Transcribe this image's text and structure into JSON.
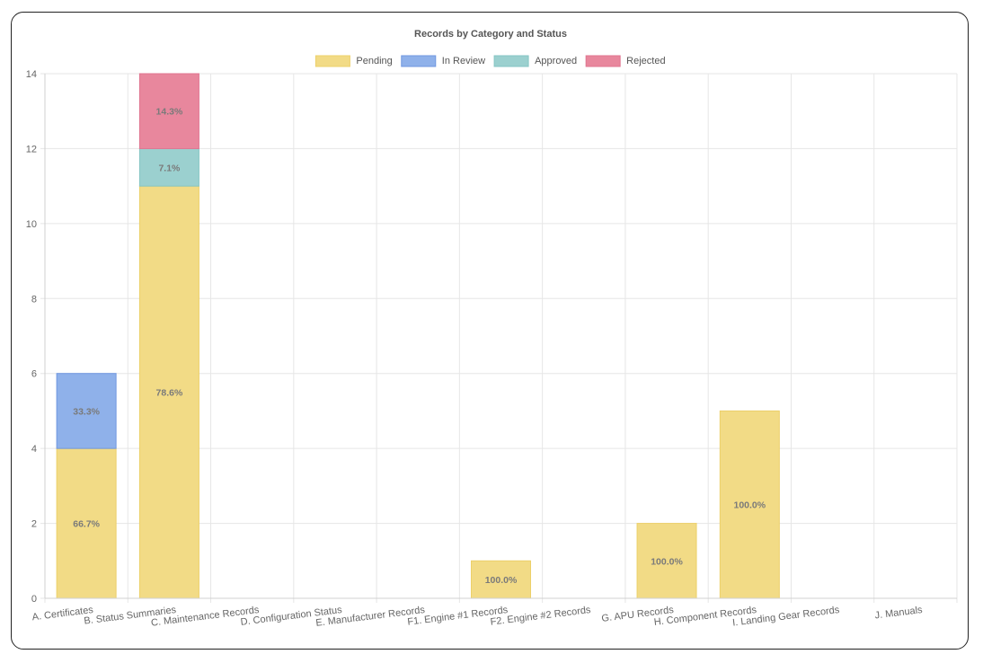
{
  "chart_data": {
    "type": "bar",
    "stacked": true,
    "title": "Records by Category and Status",
    "categories": [
      "A. Certificates",
      "B. Status Summaries",
      "C. Maintenance Records",
      "D. Configuration Status",
      "E. Manufacturer Records",
      "F1. Engine #1 Records",
      "F2. Engine #2 Records",
      "G. APU Records",
      "H. Component Records",
      "I. Landing Gear Records",
      "J. Manuals"
    ],
    "series": [
      {
        "name": "Pending",
        "color": "#f2db86",
        "border": "#ecd06a",
        "values": [
          4,
          11,
          0,
          0,
          0,
          1,
          0,
          2,
          5,
          0,
          0
        ]
      },
      {
        "name": "In Review",
        "color": "#8fb1ea",
        "border": "#6f97e0",
        "values": [
          2,
          0,
          0,
          0,
          0,
          0,
          0,
          0,
          0,
          0,
          0
        ]
      },
      {
        "name": "Approved",
        "color": "#9bd0cf",
        "border": "#86c5c4",
        "values": [
          0,
          1,
          0,
          0,
          0,
          0,
          0,
          0,
          0,
          0,
          0
        ]
      },
      {
        "name": "Rejected",
        "color": "#e8879d",
        "border": "#e07590",
        "values": [
          0,
          2,
          0,
          0,
          0,
          0,
          0,
          0,
          0,
          0,
          0
        ]
      }
    ],
    "data_labels": [
      {
        "category": "A. Certificates",
        "series": "Pending",
        "text": "66.7%"
      },
      {
        "category": "A. Certificates",
        "series": "In Review",
        "text": "33.3%"
      },
      {
        "category": "B. Status Summaries",
        "series": "Pending",
        "text": "78.6%"
      },
      {
        "category": "B. Status Summaries",
        "series": "Approved",
        "text": "7.1%"
      },
      {
        "category": "B. Status Summaries",
        "series": "Rejected",
        "text": "14.3%"
      },
      {
        "category": "F1. Engine #1 Records",
        "series": "Pending",
        "text": "100.0%"
      },
      {
        "category": "G. APU Records",
        "series": "Pending",
        "text": "100.0%"
      },
      {
        "category": "H. Component Records",
        "series": "Pending",
        "text": "100.0%"
      }
    ],
    "ylim": [
      0,
      14
    ],
    "yticks": [
      0,
      2,
      4,
      6,
      8,
      10,
      12,
      14
    ],
    "grid": true,
    "legend_position": "top"
  }
}
